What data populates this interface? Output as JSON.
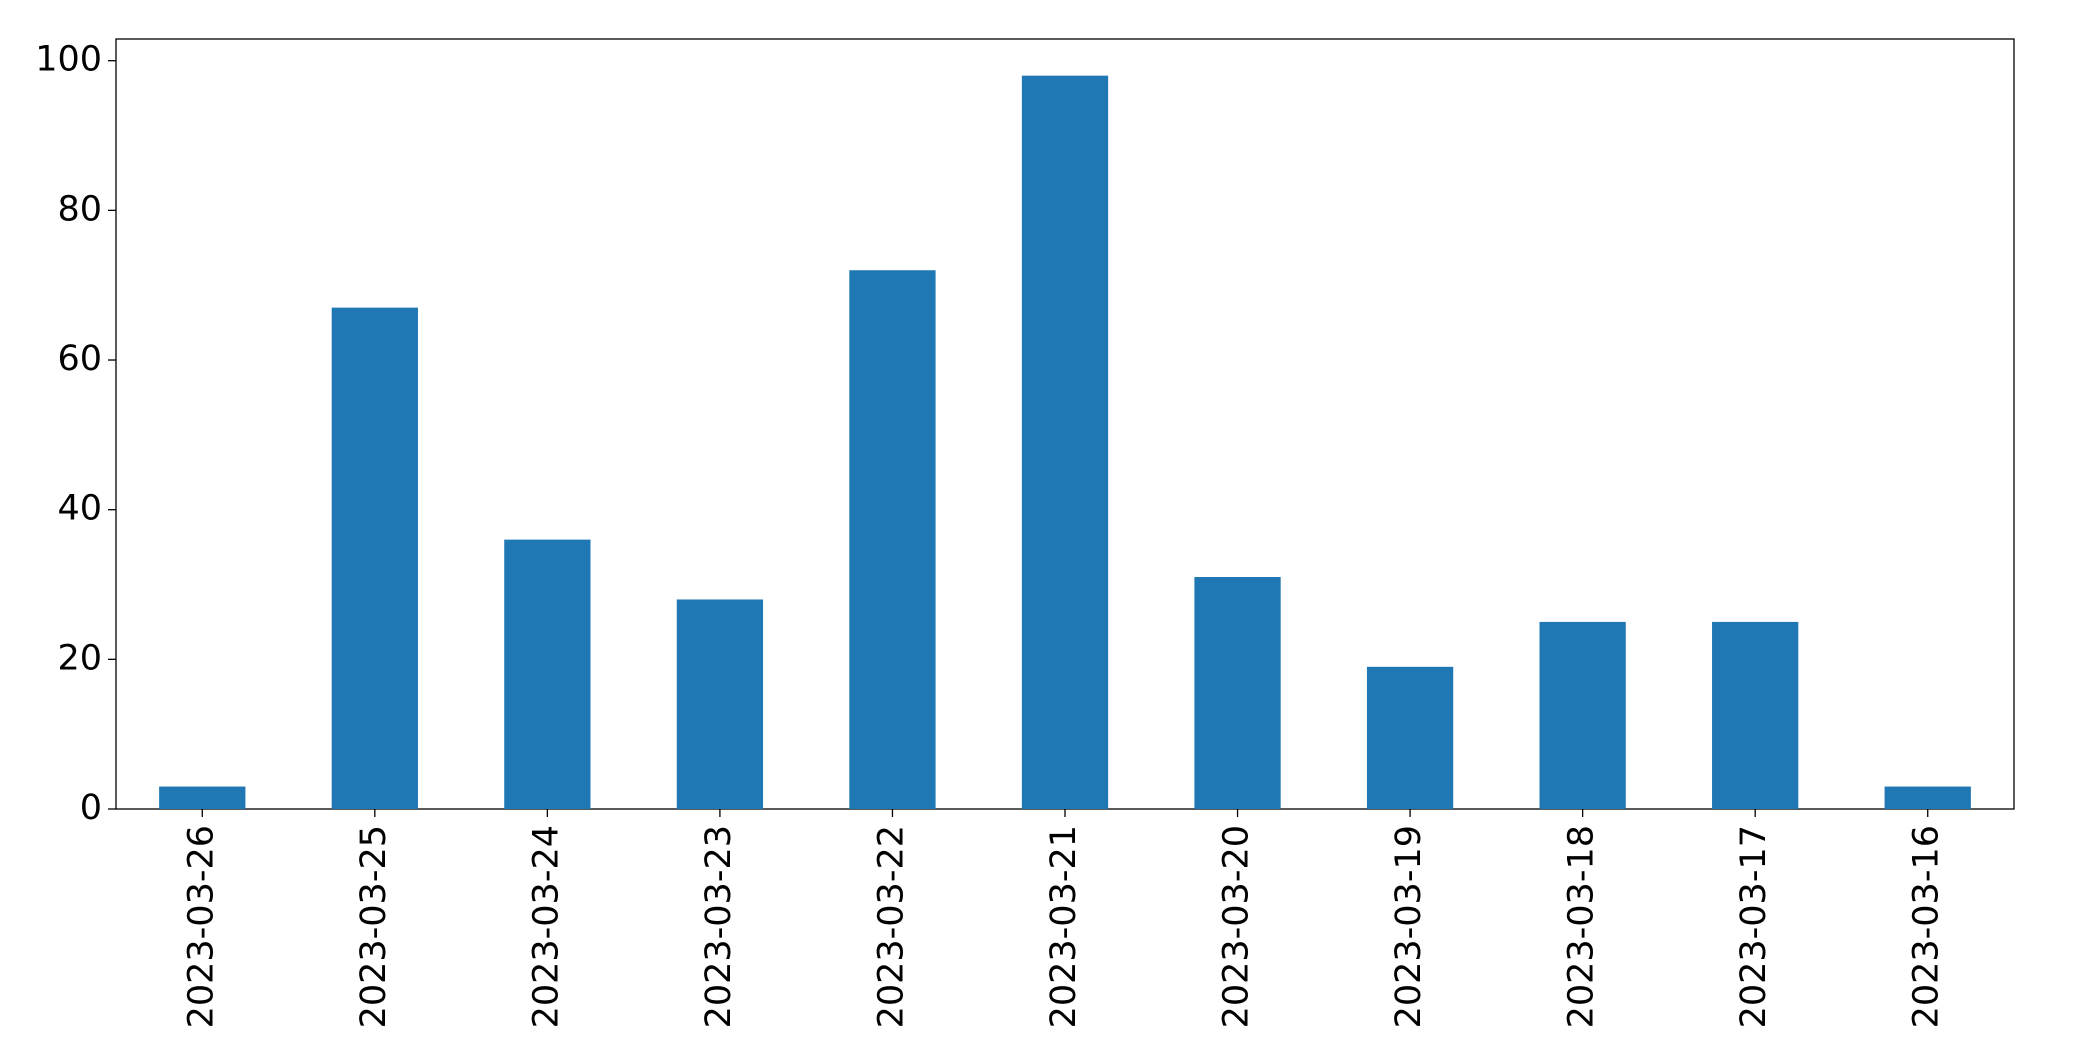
{
  "chart_data": {
    "type": "bar",
    "categories": [
      "2023-03-26",
      "2023-03-25",
      "2023-03-24",
      "2023-03-23",
      "2023-03-22",
      "2023-03-21",
      "2023-03-20",
      "2023-03-19",
      "2023-03-18",
      "2023-03-17",
      "2023-03-16"
    ],
    "values": [
      3,
      67,
      36,
      28,
      72,
      98,
      31,
      19,
      25,
      25,
      3
    ],
    "color": "#1f77b4",
    "ylim": [
      0,
      102.9
    ],
    "yticks": [
      0,
      20,
      40,
      60,
      80,
      100
    ],
    "grid": false
  }
}
